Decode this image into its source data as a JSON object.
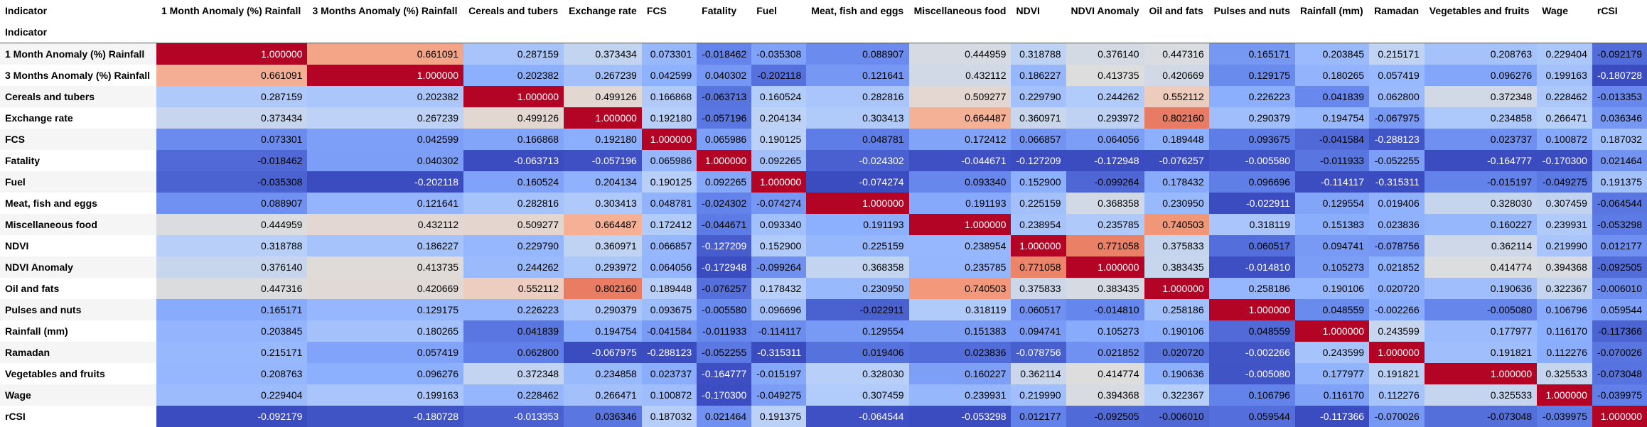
{
  "table": {
    "index_name": "Indicator",
    "columns": [
      "1 Month Anomaly (%) Rainfall",
      "3 Months Anomaly (%) Rainfall",
      "Cereals and tubers",
      "Exchange rate",
      "FCS",
      "Fatality",
      "Fuel",
      "Meat, fish and eggs",
      "Miscellaneous food",
      "NDVI",
      "NDVI Anomaly",
      "Oil and fats",
      "Pulses and nuts",
      "Rainfall (mm)",
      "Ramadan",
      "Vegetables and fruits",
      "Wage",
      "rCSI"
    ],
    "rows": [
      {
        "label": "1 Month Anomaly (%) Rainfall",
        "values": [
          "1.000000",
          "0.661091",
          "0.287159",
          "0.373434",
          "0.073301",
          "-0.018462",
          "-0.035308",
          "0.088907",
          "0.444959",
          "0.318788",
          "0.376140",
          "0.447316",
          "0.165171",
          "0.203845",
          "0.215171",
          "0.208763",
          "0.229404",
          "-0.092179"
        ]
      },
      {
        "label": "3 Months Anomaly (%) Rainfall",
        "values": [
          "0.661091",
          "1.000000",
          "0.202382",
          "0.267239",
          "0.042599",
          "0.040302",
          "-0.202118",
          "0.121641",
          "0.432112",
          "0.186227",
          "0.413735",
          "0.420669",
          "0.129175",
          "0.180265",
          "0.057419",
          "0.096276",
          "0.199163",
          "-0.180728"
        ]
      },
      {
        "label": "Cereals and tubers",
        "values": [
          "0.287159",
          "0.202382",
          "1.000000",
          "0.499126",
          "0.166868",
          "-0.063713",
          "0.160524",
          "0.282816",
          "0.509277",
          "0.229790",
          "0.244262",
          "0.552112",
          "0.226223",
          "0.041839",
          "0.062800",
          "0.372348",
          "0.228462",
          "-0.013353"
        ]
      },
      {
        "label": "Exchange rate",
        "values": [
          "0.373434",
          "0.267239",
          "0.499126",
          "1.000000",
          "0.192180",
          "-0.057196",
          "0.204134",
          "0.303413",
          "0.664487",
          "0.360971",
          "0.293972",
          "0.802160",
          "0.290379",
          "0.194754",
          "-0.067975",
          "0.234858",
          "0.266471",
          "0.036346"
        ]
      },
      {
        "label": "FCS",
        "values": [
          "0.073301",
          "0.042599",
          "0.166868",
          "0.192180",
          "1.000000",
          "0.065986",
          "0.190125",
          "0.048781",
          "0.172412",
          "0.066857",
          "0.064056",
          "0.189448",
          "0.093675",
          "-0.041584",
          "-0.288123",
          "0.023737",
          "0.100872",
          "0.187032"
        ]
      },
      {
        "label": "Fatality",
        "values": [
          "-0.018462",
          "0.040302",
          "-0.063713",
          "-0.057196",
          "0.065986",
          "1.000000",
          "0.092265",
          "-0.024302",
          "-0.044671",
          "-0.127209",
          "-0.172948",
          "-0.076257",
          "-0.005580",
          "-0.011933",
          "-0.052255",
          "-0.164777",
          "-0.170300",
          "0.021464"
        ]
      },
      {
        "label": "Fuel",
        "values": [
          "-0.035308",
          "-0.202118",
          "0.160524",
          "0.204134",
          "0.190125",
          "0.092265",
          "1.000000",
          "-0.074274",
          "0.093340",
          "0.152900",
          "-0.099264",
          "0.178432",
          "0.096696",
          "-0.114117",
          "-0.315311",
          "-0.015197",
          "-0.049275",
          "0.191375"
        ]
      },
      {
        "label": "Meat, fish and eggs",
        "values": [
          "0.088907",
          "0.121641",
          "0.282816",
          "0.303413",
          "0.048781",
          "-0.024302",
          "-0.074274",
          "1.000000",
          "0.191193",
          "0.225159",
          "0.368358",
          "0.230950",
          "-0.022911",
          "0.129554",
          "0.019406",
          "0.328030",
          "0.307459",
          "-0.064544"
        ]
      },
      {
        "label": "Miscellaneous food",
        "values": [
          "0.444959",
          "0.432112",
          "0.509277",
          "0.664487",
          "0.172412",
          "-0.044671",
          "0.093340",
          "0.191193",
          "1.000000",
          "0.238954",
          "0.235785",
          "0.740503",
          "0.318119",
          "0.151383",
          "0.023836",
          "0.160227",
          "0.239931",
          "-0.053298"
        ]
      },
      {
        "label": "NDVI",
        "values": [
          "0.318788",
          "0.186227",
          "0.229790",
          "0.360971",
          "0.066857",
          "-0.127209",
          "0.152900",
          "0.225159",
          "0.238954",
          "1.000000",
          "0.771058",
          "0.375833",
          "0.060517",
          "0.094741",
          "-0.078756",
          "0.362114",
          "0.219990",
          "0.012177"
        ]
      },
      {
        "label": "NDVI Anomaly",
        "values": [
          "0.376140",
          "0.413735",
          "0.244262",
          "0.293972",
          "0.064056",
          "-0.172948",
          "-0.099264",
          "0.368358",
          "0.235785",
          "0.771058",
          "1.000000",
          "0.383435",
          "-0.014810",
          "0.105273",
          "0.021852",
          "0.414774",
          "0.394368",
          "-0.092505"
        ]
      },
      {
        "label": "Oil and fats",
        "values": [
          "0.447316",
          "0.420669",
          "0.552112",
          "0.802160",
          "0.189448",
          "-0.076257",
          "0.178432",
          "0.230950",
          "0.740503",
          "0.375833",
          "0.383435",
          "1.000000",
          "0.258186",
          "0.190106",
          "0.020720",
          "0.190636",
          "0.322367",
          "-0.006010"
        ]
      },
      {
        "label": "Pulses and nuts",
        "values": [
          "0.165171",
          "0.129175",
          "0.226223",
          "0.290379",
          "0.093675",
          "-0.005580",
          "0.096696",
          "-0.022911",
          "0.318119",
          "0.060517",
          "-0.014810",
          "0.258186",
          "1.000000",
          "0.048559",
          "-0.002266",
          "-0.005080",
          "0.106796",
          "0.059544"
        ]
      },
      {
        "label": "Rainfall (mm)",
        "values": [
          "0.203845",
          "0.180265",
          "0.041839",
          "0.194754",
          "-0.041584",
          "-0.011933",
          "-0.114117",
          "0.129554",
          "0.151383",
          "0.094741",
          "0.105273",
          "0.190106",
          "0.048559",
          "1.000000",
          "0.243599",
          "0.177977",
          "0.116170",
          "-0.117366"
        ]
      },
      {
        "label": "Ramadan",
        "values": [
          "0.215171",
          "0.057419",
          "0.062800",
          "-0.067975",
          "-0.288123",
          "-0.052255",
          "-0.315311",
          "0.019406",
          "0.023836",
          "-0.078756",
          "0.021852",
          "0.020720",
          "-0.002266",
          "0.243599",
          "1.000000",
          "0.191821",
          "0.112276",
          "-0.070026"
        ]
      },
      {
        "label": "Vegetables and fruits",
        "values": [
          "0.208763",
          "0.096276",
          "0.372348",
          "0.234858",
          "0.023737",
          "-0.164777",
          "-0.015197",
          "0.328030",
          "0.160227",
          "0.362114",
          "0.414774",
          "0.190636",
          "-0.005080",
          "0.177977",
          "0.191821",
          "1.000000",
          "0.325533",
          "-0.073048"
        ]
      },
      {
        "label": "Wage",
        "values": [
          "0.229404",
          "0.199163",
          "0.228462",
          "0.266471",
          "0.100872",
          "-0.170300",
          "-0.049275",
          "0.307459",
          "0.239931",
          "0.219990",
          "0.394368",
          "0.322367",
          "0.106796",
          "0.116170",
          "0.112276",
          "0.325533",
          "1.000000",
          "-0.039975"
        ]
      },
      {
        "label": "rCSI",
        "values": [
          "-0.092179",
          "-0.180728",
          "-0.013353",
          "0.036346",
          "0.187032",
          "0.021464",
          "0.191375",
          "-0.064544",
          "-0.053298",
          "0.012177",
          "-0.092505",
          "-0.006010",
          "0.059544",
          "-0.117366",
          "-0.070026",
          "-0.073048",
          "-0.039975",
          "1.000000"
        ]
      }
    ]
  }
}
